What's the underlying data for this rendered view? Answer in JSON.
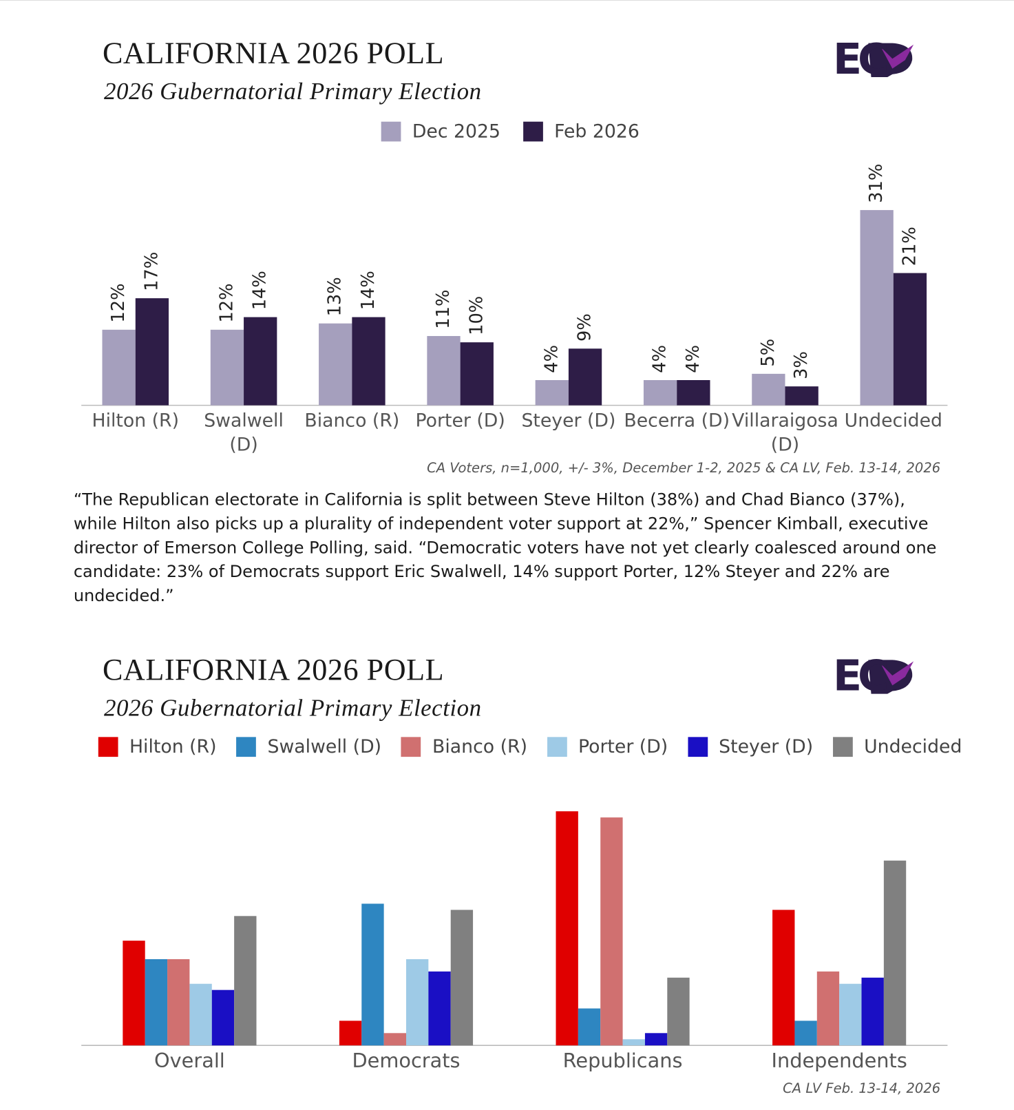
{
  "chart_data": [
    {
      "type": "bar",
      "title": "CALIFORNIA 2026 POLL",
      "subtitle": "2026 Gubernatorial Primary Election",
      "logo": "EC",
      "categories": [
        "Hilton (R)",
        "Swalwell (D)",
        "Bianco (R)",
        "Porter (D)",
        "Steyer (D)",
        "Becerra (D)",
        "Villaraigosa (D)",
        "Undecided"
      ],
      "series": [
        {
          "name": "Dec 2025",
          "color": "#a59fbd",
          "values": [
            12,
            12,
            13,
            11,
            4,
            4,
            5,
            31
          ],
          "value_labels": [
            "12%",
            "12%",
            "13%",
            "11%",
            "4%",
            "4%",
            "5%",
            "31%"
          ]
        },
        {
          "name": "Feb 2026",
          "color": "#2e1d47",
          "values": [
            17,
            14,
            14,
            10,
            9,
            4,
            3,
            21
          ],
          "value_labels": [
            "17%",
            "14%",
            "14%",
            "10%",
            "9%",
            "4%",
            "3%",
            "21%"
          ]
        }
      ],
      "source": "CA Voters, n=1,000, +/- 3%, December 1-2, 2025 & CA LV, Feb. 13-14, 2026"
    },
    {
      "type": "bar",
      "title": "CALIFORNIA 2026 POLL",
      "subtitle": "2026 Gubernatorial Primary Election",
      "logo": "EC",
      "categories": [
        "Overall",
        "Democrats",
        "Republicans",
        "Independents"
      ],
      "series": [
        {
          "name": "Hilton (R)",
          "color": "#e00000",
          "values": [
            17,
            4,
            38,
            22
          ]
        },
        {
          "name": "Swalwell (D)",
          "color": "#2e86c1",
          "values": [
            14,
            23,
            6,
            4
          ]
        },
        {
          "name": "Bianco (R)",
          "color": "#d07070",
          "values": [
            14,
            2,
            37,
            12
          ]
        },
        {
          "name": "Porter (D)",
          "color": "#9ecae6",
          "values": [
            10,
            14,
            1,
            10
          ]
        },
        {
          "name": "Steyer (D)",
          "color": "#1a0fc4",
          "values": [
            9,
            12,
            2,
            11
          ]
        },
        {
          "name": "Undecided",
          "color": "#808080",
          "values": [
            21,
            22,
            11,
            30
          ]
        }
      ],
      "source": "CA LV Feb. 13-14, 2026"
    }
  ],
  "quote": "“The Republican electorate in California is split between Steve Hilton (38%) and Chad Bianco (37%), while Hilton also picks up a plurality of independent voter support at 22%,” Spencer Kimball, executive director of Emerson College Polling, said. “Democratic voters have not yet clearly coalesced around one candidate: 23% of Democrats support Eric Swalwell, 14% support Porter, 12% Steyer and 22% are undecided.”"
}
